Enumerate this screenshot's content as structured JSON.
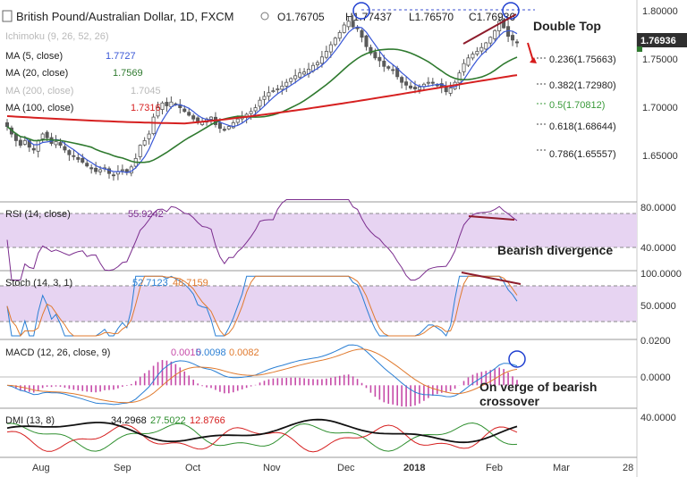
{
  "header": {
    "symbol": "British Pound/Australian Dollar, 1D, FXCM",
    "open": "O1.76705",
    "high": "H1.77437",
    "low": "L1.76570",
    "close": "C1.76936"
  },
  "indicators_main": [
    {
      "label": "Ichimoku (9, 26, 52, 26)",
      "value": "",
      "color": "#b9b9b9"
    },
    {
      "label": "MA (5, close)",
      "value": "1.7727",
      "color": "#3957d6"
    },
    {
      "label": "MA (20, close)",
      "value": "1.7569",
      "color": "#2f7a2f"
    },
    {
      "label": "MA (200, close)",
      "value": "1.7045",
      "color": "#b9b9b9"
    },
    {
      "label": "MA (100, close)",
      "value": "1.7316",
      "color": "#d62020"
    }
  ],
  "price_badge": "1.76936",
  "annotations": {
    "double_top": "Double Top",
    "bearish_divergence": "Bearish divergence",
    "verge_line1": "On verge of bearish",
    "verge_line2": "crossover"
  },
  "fib_levels": [
    {
      "label": "0.236(1.75663)",
      "value": 1.75663,
      "color": "#222222"
    },
    {
      "label": "0.382(1.72980)",
      "value": 1.7298,
      "color": "#222222"
    },
    {
      "label": "0.5(1.70812)",
      "value": 1.70812,
      "color": "#3a9a3a"
    },
    {
      "label": "0.618(1.68644)",
      "value": 1.68644,
      "color": "#222222"
    },
    {
      "label": "0.786(1.65557)",
      "value": 1.65557,
      "color": "#222222"
    }
  ],
  "panels": {
    "rsi": {
      "label": "RSI (14, close)",
      "value": "55.9242",
      "axis": [
        "80.0000",
        "40.0000"
      ]
    },
    "stoch": {
      "label": "Stoch (14, 3, 1)",
      "values": [
        "52.7123",
        "48.7159"
      ],
      "axis": [
        "100.0000",
        "50.0000"
      ]
    },
    "macd": {
      "label": "MACD (12, 26, close, 9)",
      "values": [
        "0.0015",
        "0.0098",
        "0.0082"
      ],
      "axis": [
        "0.0200",
        "0.0000"
      ]
    },
    "dmi": {
      "label": "DMI (13, 8)",
      "values": [
        "34.2968",
        "27.5022",
        "12.8766"
      ],
      "axis": [
        "40.0000"
      ]
    }
  },
  "x_labels": [
    "Aug",
    "Sep",
    "Oct",
    "Nov",
    "Dec",
    "2018",
    "Feb",
    "Mar",
    "28"
  ],
  "price_axis": [
    "1.80000",
    "1.75000",
    "1.70000",
    "1.65000"
  ],
  "colors": {
    "up_candle": "#5b5b5b",
    "down_candle": "#5b5b5b",
    "ma5": "#3957d6",
    "ma20": "#2f7a2f",
    "ma100": "#d62020",
    "rsi_line": "#7b2d8e",
    "band_fill": "#e7d4f2",
    "stoch_k": "#2a7fd4",
    "stoch_d": "#e07a2e",
    "macd_hist": "#c64aa8",
    "annotation": "#8e1c2c"
  },
  "chart_data": {
    "type": "candlestick",
    "title": "British Pound/Australian Dollar, 1D, FXCM",
    "x_labels": [
      "Aug",
      "Sep",
      "Oct",
      "Nov",
      "Dec",
      "2018",
      "Feb",
      "Mar",
      "28"
    ],
    "ylim": [
      1.615,
      1.807
    ],
    "close_series": [
      1.68,
      1.672,
      1.665,
      1.66,
      1.665,
      1.658,
      1.655,
      1.665,
      1.672,
      1.668,
      1.662,
      1.664,
      1.66,
      1.655,
      1.65,
      1.648,
      1.645,
      1.642,
      1.638,
      1.635,
      1.632,
      1.634,
      1.636,
      1.63,
      1.628,
      1.632,
      1.634,
      1.631,
      1.637,
      1.646,
      1.66,
      1.665,
      1.672,
      1.69,
      1.7,
      1.705,
      1.702,
      1.706,
      1.703,
      1.7,
      1.696,
      1.692,
      1.688,
      1.684,
      1.685,
      1.688,
      1.69,
      1.682,
      1.678,
      1.676,
      1.68,
      1.684,
      1.688,
      1.69,
      1.693,
      1.696,
      1.7,
      1.708,
      1.712,
      1.716,
      1.718,
      1.72,
      1.723,
      1.727,
      1.731,
      1.734,
      1.737,
      1.738,
      1.741,
      1.745,
      1.748,
      1.754,
      1.76,
      1.767,
      1.774,
      1.78,
      1.788,
      1.792,
      1.786,
      1.784,
      1.775,
      1.765,
      1.758,
      1.753,
      1.75,
      1.744,
      1.742,
      1.74,
      1.733,
      1.727,
      1.724,
      1.721,
      1.72,
      1.722,
      1.725,
      1.727,
      1.726,
      1.724,
      1.722,
      1.717,
      1.721,
      1.727,
      1.737,
      1.747,
      1.753,
      1.757,
      1.76,
      1.764,
      1.769,
      1.775,
      1.782,
      1.792,
      1.785,
      1.776,
      1.772,
      1.769
    ],
    "annotations": [
      "Double Top",
      "Bearish divergence",
      "On verge of bearish crossover"
    ],
    "indicators": [
      "Ichimoku (9, 26, 52, 26)",
      "MA (5, close)",
      "MA (20, close)",
      "MA (200, close)",
      "MA (100, close)",
      "RSI (14, close)",
      "Stoch (14, 3, 1)",
      "MACD (12, 26, close, 9)",
      "DMI (13, 8)"
    ]
  }
}
